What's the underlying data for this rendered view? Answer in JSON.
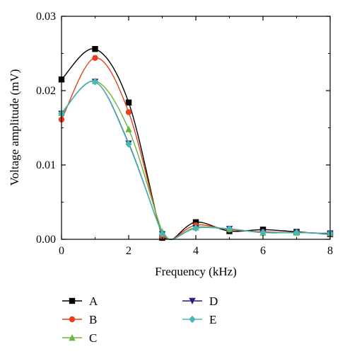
{
  "chart_data": {
    "type": "line",
    "title": "",
    "xlabel": "Frequency (kHz)",
    "ylabel": "Voltage amplitude (mV)",
    "xlim": [
      0,
      8
    ],
    "ylim": [
      0,
      0.03
    ],
    "xticks": [
      "0",
      "2",
      "4",
      "6",
      "8"
    ],
    "yticks": [
      "0.00",
      "0.01",
      "0.02",
      "0.03"
    ],
    "grid": false,
    "legend_position": "bottom",
    "x": [
      0,
      1,
      2,
      3,
      3.3,
      4,
      5,
      6,
      7,
      8
    ],
    "series": [
      {
        "name": "A",
        "color": "#000000",
        "marker": "square",
        "values": [
          0.0215,
          0.0256,
          0.0184,
          0.0002,
          0.0,
          0.0023,
          0.0011,
          0.0013,
          0.001,
          0.0007
        ]
      },
      {
        "name": "B",
        "color": "#e8401c",
        "marker": "circle",
        "values": [
          0.0161,
          0.0244,
          0.0171,
          0.0004,
          0.0,
          0.0019,
          0.0013,
          0.001,
          0.0009,
          0.0008
        ]
      },
      {
        "name": "C",
        "color": "#6ab53c",
        "marker": "triangle-up",
        "values": [
          0.017,
          0.0213,
          0.0148,
          0.001,
          0.0,
          0.0016,
          0.0014,
          0.0009,
          0.0009,
          0.0008
        ]
      },
      {
        "name": "D",
        "color": "#2a1f8a",
        "marker": "triangle-down",
        "values": [
          0.0169,
          0.0212,
          0.0129,
          0.0007,
          0.0,
          0.0015,
          0.0014,
          0.0009,
          0.0009,
          0.0008
        ]
      },
      {
        "name": "E",
        "color": "#47b9b0",
        "marker": "diamond",
        "values": [
          0.0169,
          0.0212,
          0.0128,
          0.0007,
          0.0,
          0.0015,
          0.0014,
          0.0009,
          0.0009,
          0.0008
        ]
      }
    ]
  }
}
